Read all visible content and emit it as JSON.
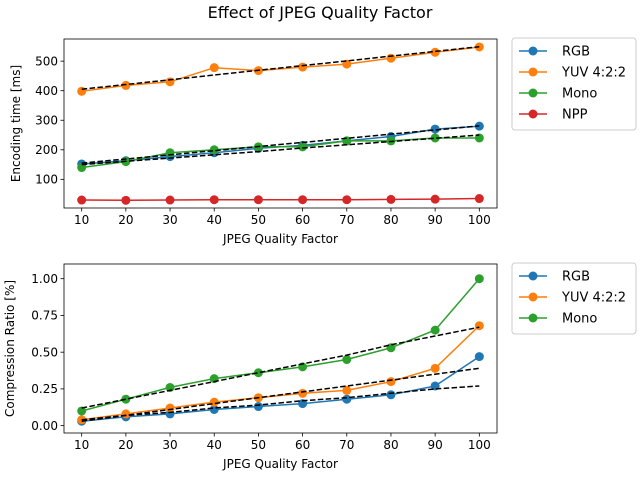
{
  "figure_title": "Effect of JPEG Quality Factor",
  "colors": {
    "RGB": "#1f77b4",
    "YUV 4:2:2": "#ff7f0e",
    "Mono": "#2ca02c",
    "NPP": "#d62728",
    "trend": "#000000"
  },
  "chart_data": [
    {
      "type": "line",
      "title": "",
      "xlabel": "JPEG Quality Factor",
      "ylabel": "Encoding time [ms]",
      "xlim": [
        6,
        104
      ],
      "ylim": [
        3,
        575
      ],
      "x": [
        10,
        20,
        30,
        40,
        50,
        60,
        70,
        80,
        90,
        100
      ],
      "xticks": [
        10,
        20,
        30,
        40,
        50,
        60,
        70,
        80,
        90,
        100
      ],
      "yticks": [
        100,
        200,
        300,
        400,
        500
      ],
      "legend": "outside-top-right",
      "series": [
        {
          "name": "RGB",
          "values": [
            152,
            163,
            177,
            190,
            205,
            215,
            230,
            245,
            270,
            280
          ],
          "trend": [
            155,
            169,
            183,
            197,
            211,
            225,
            239,
            253,
            267,
            281
          ]
        },
        {
          "name": "YUV 4:2:2",
          "values": [
            398,
            418,
            430,
            478,
            468,
            480,
            490,
            510,
            530,
            548
          ],
          "trend": [
            405,
            421,
            437,
            453,
            469,
            485,
            501,
            517,
            533,
            549
          ]
        },
        {
          "name": "Mono",
          "values": [
            140,
            160,
            190,
            200,
            210,
            210,
            230,
            230,
            240,
            240
          ],
          "trend": [
            150,
            161,
            172,
            183,
            194,
            206,
            217,
            228,
            239,
            250
          ]
        },
        {
          "name": "NPP",
          "values": [
            30,
            29,
            30,
            31,
            31,
            31,
            31,
            32,
            33,
            35
          ],
          "trend": null
        }
      ]
    },
    {
      "type": "line",
      "title": "",
      "xlabel": "JPEG Quality Factor",
      "ylabel": "Compression Ratio [%]",
      "xlim": [
        6,
        104
      ],
      "ylim": [
        -0.05,
        1.1
      ],
      "x": [
        10,
        20,
        30,
        40,
        50,
        60,
        70,
        80,
        90,
        100
      ],
      "xticks": [
        10,
        20,
        30,
        40,
        50,
        60,
        70,
        80,
        90,
        100
      ],
      "yticks": [
        0.0,
        0.25,
        0.5,
        0.75,
        1.0
      ],
      "ytick_labels": [
        "0.00",
        "0.25",
        "0.50",
        "0.75",
        "1.00"
      ],
      "legend": "outside-top-right",
      "series": [
        {
          "name": "RGB",
          "values": [
            0.03,
            0.06,
            0.08,
            0.11,
            0.13,
            0.15,
            0.18,
            0.21,
            0.27,
            0.47
          ],
          "trend": [
            0.04,
            0.07,
            0.09,
            0.12,
            0.14,
            0.17,
            0.19,
            0.22,
            0.25,
            0.27
          ]
        },
        {
          "name": "YUV 4:2:2",
          "values": [
            0.04,
            0.08,
            0.12,
            0.16,
            0.19,
            0.22,
            0.24,
            0.3,
            0.39,
            0.68
          ],
          "trend": [
            0.03,
            0.07,
            0.11,
            0.15,
            0.19,
            0.23,
            0.27,
            0.31,
            0.35,
            0.39
          ]
        },
        {
          "name": "Mono",
          "values": [
            0.1,
            0.18,
            0.26,
            0.32,
            0.36,
            0.4,
            0.45,
            0.53,
            0.65,
            1.0
          ],
          "trend": [
            0.12,
            0.18,
            0.24,
            0.3,
            0.36,
            0.42,
            0.48,
            0.55,
            0.61,
            0.67
          ]
        }
      ]
    }
  ]
}
